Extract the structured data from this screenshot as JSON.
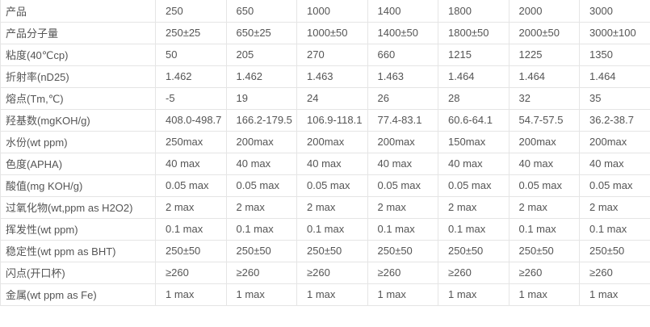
{
  "colors": {
    "border": "#e5e5e5",
    "text": "#555555",
    "background": "#ffffff"
  },
  "table": {
    "rows": [
      {
        "label": "产品",
        "values": [
          "250",
          "650",
          "1000",
          "1400",
          "1800",
          "2000",
          "3000"
        ]
      },
      {
        "label": "产品分子量",
        "values": [
          "250±25",
          "650±25",
          "1000±50",
          "1400±50",
          "1800±50",
          "2000±50",
          "3000±100"
        ]
      },
      {
        "label": "粘度(40℃cp)",
        "values": [
          "50",
          "205",
          "270",
          "660",
          "1215",
          "1225",
          "1350"
        ]
      },
      {
        "label": "折射率(nD25)",
        "values": [
          "1.462",
          "1.462",
          "1.463",
          "1.463",
          "1.464",
          "1.464",
          "1.464"
        ]
      },
      {
        "label": "熔点(Tm,℃)",
        "values": [
          "-5",
          "19",
          "24",
          "26",
          "28",
          "32",
          "35"
        ]
      },
      {
        "label": "羟基数(mgKOH/g)",
        "values": [
          "408.0-498.7",
          "166.2-179.5",
          "106.9-118.1",
          "77.4-83.1",
          "60.6-64.1",
          "54.7-57.5",
          "36.2-38.7"
        ]
      },
      {
        "label": "水份(wt ppm)",
        "values": [
          "250max",
          "200max",
          "200max",
          "200max",
          "150max",
          "200max",
          "200max"
        ]
      },
      {
        "label": "色度(APHA)",
        "values": [
          "40 max",
          "40 max",
          "40 max",
          "40 max",
          "40 max",
          "40 max",
          "40 max"
        ]
      },
      {
        "label": "酸值(mg KOH/g)",
        "values": [
          "0.05 max",
          "0.05 max",
          "0.05 max",
          "0.05 max",
          "0.05 max",
          "0.05 max",
          "0.05 max"
        ]
      },
      {
        "label": "过氧化物(wt,ppm as H2O2)",
        "values": [
          "2 max",
          "2 max",
          "2 max",
          "2 max",
          "2 max",
          "2 max",
          "2 max"
        ]
      },
      {
        "label": "挥发性(wt ppm)",
        "values": [
          "0.1 max",
          "0.1 max",
          "0.1 max",
          "0.1 max",
          "0.1 max",
          "0.1 max",
          "0.1 max"
        ]
      },
      {
        "label": "稳定性(wt ppm as BHT)",
        "values": [
          "250±50",
          "250±50",
          "250±50",
          "250±50",
          "250±50",
          "250±50",
          "250±50"
        ]
      },
      {
        "label": "闪点(开口杯)",
        "values": [
          "≥260",
          "≥260",
          "≥260",
          "≥260",
          "≥260",
          "≥260",
          "≥260"
        ]
      },
      {
        "label": "金属(wt ppm as Fe)",
        "values": [
          "1 max",
          "1 max",
          "1 max",
          "1 max",
          "1 max",
          "1 max",
          "1 max"
        ]
      }
    ]
  }
}
